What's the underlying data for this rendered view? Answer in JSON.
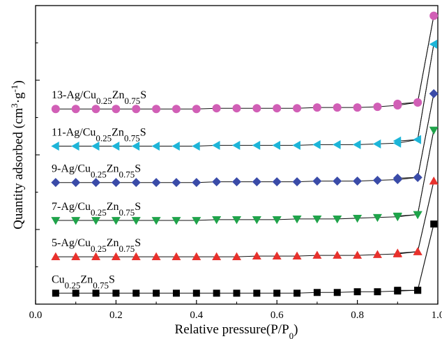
{
  "chart_data": {
    "type": "line",
    "xlabel": "Relative pressure(P/P0)",
    "ylabel": "Quantity adsorbed (cm3·g-1)",
    "xlim": [
      0.0,
      1.0
    ],
    "x_ticks": [
      "0.0",
      "0.2",
      "0.4",
      "0.6",
      "0.8",
      "1.0"
    ],
    "y_tick_labels_shown": false,
    "grid": false,
    "legend": "inline labels above each curve",
    "series": [
      {
        "name": "Cu0.25Zn0.75S",
        "label_parts": [
          [
            "Cu",
            ""
          ],
          [
            "0.25",
            "sub"
          ],
          [
            "Zn",
            ""
          ],
          [
            "0.75",
            "sub"
          ],
          [
            "S",
            ""
          ]
        ],
        "marker": "square",
        "color": "#000000",
        "adsorption": {
          "x": [
            0.05,
            0.1,
            0.15,
            0.2,
            0.25,
            0.3,
            0.35,
            0.4,
            0.45,
            0.5,
            0.55,
            0.6,
            0.65,
            0.7,
            0.75,
            0.8,
            0.85,
            0.9,
            0.95,
            0.99
          ],
          "y": [
            0.0,
            0.0,
            0.0,
            0.0,
            0.0,
            0.0,
            0.0,
            0.0,
            0.0,
            0.0,
            0.0,
            0.0,
            0.0,
            0.1,
            0.1,
            0.2,
            0.2,
            0.3,
            0.4,
            9.5
          ]
        },
        "desorption": {
          "x": [
            0.95,
            0.9
          ],
          "y": [
            0.4,
            0.4
          ]
        }
      },
      {
        "name": "5-Ag/Cu0.25Zn0.75S",
        "label_parts": [
          [
            "5-Ag/Cu",
            ""
          ],
          [
            "0.25",
            "sub"
          ],
          [
            "Zn",
            ""
          ],
          [
            "0.75",
            "sub"
          ],
          [
            "S",
            ""
          ]
        ],
        "marker": "triangle-up",
        "color": "#e8312c",
        "adsorption": {
          "x": [
            0.05,
            0.1,
            0.15,
            0.2,
            0.25,
            0.3,
            0.35,
            0.4,
            0.45,
            0.5,
            0.55,
            0.6,
            0.65,
            0.7,
            0.75,
            0.8,
            0.85,
            0.9,
            0.95,
            0.99
          ],
          "y": [
            5.0,
            5.0,
            5.0,
            5.0,
            5.0,
            5.0,
            5.0,
            5.0,
            5.0,
            5.0,
            5.1,
            5.1,
            5.1,
            5.2,
            5.2,
            5.2,
            5.3,
            5.4,
            5.7,
            15.4
          ]
        },
        "desorption": {
          "x": [
            0.95,
            0.9
          ],
          "y": [
            5.7,
            5.5
          ]
        }
      },
      {
        "name": "7-Ag/Cu0.25Zn0.75S",
        "label_parts": [
          [
            "7-Ag/Cu",
            ""
          ],
          [
            "0.25",
            "sub"
          ],
          [
            "Zn",
            ""
          ],
          [
            "0.75",
            "sub"
          ],
          [
            "S",
            ""
          ]
        ],
        "marker": "triangle-down",
        "color": "#1fa34a",
        "adsorption": {
          "x": [
            0.05,
            0.1,
            0.15,
            0.2,
            0.25,
            0.3,
            0.35,
            0.4,
            0.45,
            0.5,
            0.55,
            0.6,
            0.65,
            0.7,
            0.75,
            0.8,
            0.85,
            0.9,
            0.95,
            0.99
          ],
          "y": [
            10.0,
            10.0,
            10.0,
            10.0,
            10.0,
            10.0,
            10.0,
            10.0,
            10.1,
            10.1,
            10.1,
            10.1,
            10.2,
            10.2,
            10.2,
            10.3,
            10.4,
            10.5,
            10.8,
            22.4
          ]
        },
        "desorption": {
          "x": [
            0.95,
            0.9
          ],
          "y": [
            10.8,
            10.6
          ]
        }
      },
      {
        "name": "9-Ag/Cu0.25Zn0.75S",
        "label_parts": [
          [
            "9-Ag/Cu",
            ""
          ],
          [
            "0.25",
            "sub"
          ],
          [
            "Zn",
            ""
          ],
          [
            "0.75",
            "sub"
          ],
          [
            "S",
            ""
          ]
        ],
        "marker": "diamond",
        "color": "#3a4ba8",
        "adsorption": {
          "x": [
            0.05,
            0.1,
            0.15,
            0.2,
            0.25,
            0.3,
            0.35,
            0.4,
            0.45,
            0.5,
            0.55,
            0.6,
            0.65,
            0.7,
            0.75,
            0.8,
            0.85,
            0.9,
            0.95,
            0.99
          ],
          "y": [
            15.2,
            15.2,
            15.2,
            15.2,
            15.2,
            15.2,
            15.2,
            15.2,
            15.3,
            15.3,
            15.3,
            15.3,
            15.3,
            15.4,
            15.4,
            15.4,
            15.5,
            15.6,
            15.9,
            27.4
          ]
        },
        "desorption": {
          "x": [
            0.95,
            0.9
          ],
          "y": [
            15.9,
            15.8
          ]
        }
      },
      {
        "name": "11-Ag/Cu0.25Zn0.75S",
        "label_parts": [
          [
            "11-Ag/Cu",
            ""
          ],
          [
            "0.25",
            "sub"
          ],
          [
            "Zn",
            ""
          ],
          [
            "0.75",
            "sub"
          ],
          [
            "S",
            ""
          ]
        ],
        "marker": "triangle-left",
        "color": "#1db5d8",
        "adsorption": {
          "x": [
            0.05,
            0.1,
            0.15,
            0.2,
            0.25,
            0.3,
            0.35,
            0.4,
            0.45,
            0.5,
            0.55,
            0.6,
            0.65,
            0.7,
            0.75,
            0.8,
            0.85,
            0.9,
            0.95,
            0.99
          ],
          "y": [
            20.2,
            20.2,
            20.2,
            20.2,
            20.2,
            20.2,
            20.2,
            20.2,
            20.3,
            20.3,
            20.3,
            20.3,
            20.3,
            20.4,
            20.4,
            20.4,
            20.5,
            20.6,
            21.1,
            34.2
          ]
        },
        "desorption": {
          "x": [
            0.95,
            0.9
          ],
          "y": [
            21.1,
            20.9
          ]
        }
      },
      {
        "name": "13-Ag/Cu0.25Zn0.75S",
        "label_parts": [
          [
            "13-Ag/Cu",
            ""
          ],
          [
            "0.25",
            "sub"
          ],
          [
            "Zn",
            ""
          ],
          [
            "0.75",
            "sub"
          ],
          [
            "S",
            ""
          ]
        ],
        "marker": "circle",
        "color": "#d15fb6",
        "adsorption": {
          "x": [
            0.05,
            0.1,
            0.15,
            0.2,
            0.25,
            0.3,
            0.35,
            0.4,
            0.45,
            0.5,
            0.55,
            0.6,
            0.65,
            0.7,
            0.75,
            0.8,
            0.85,
            0.9,
            0.95,
            0.99
          ],
          "y": [
            25.3,
            25.3,
            25.3,
            25.3,
            25.3,
            25.3,
            25.3,
            25.3,
            25.4,
            25.4,
            25.4,
            25.4,
            25.4,
            25.5,
            25.5,
            25.5,
            25.6,
            25.8,
            26.2,
            38.1
          ]
        },
        "desorption": {
          "x": [
            0.95,
            0.9
          ],
          "y": [
            26.2,
            26.0
          ]
        }
      }
    ]
  }
}
